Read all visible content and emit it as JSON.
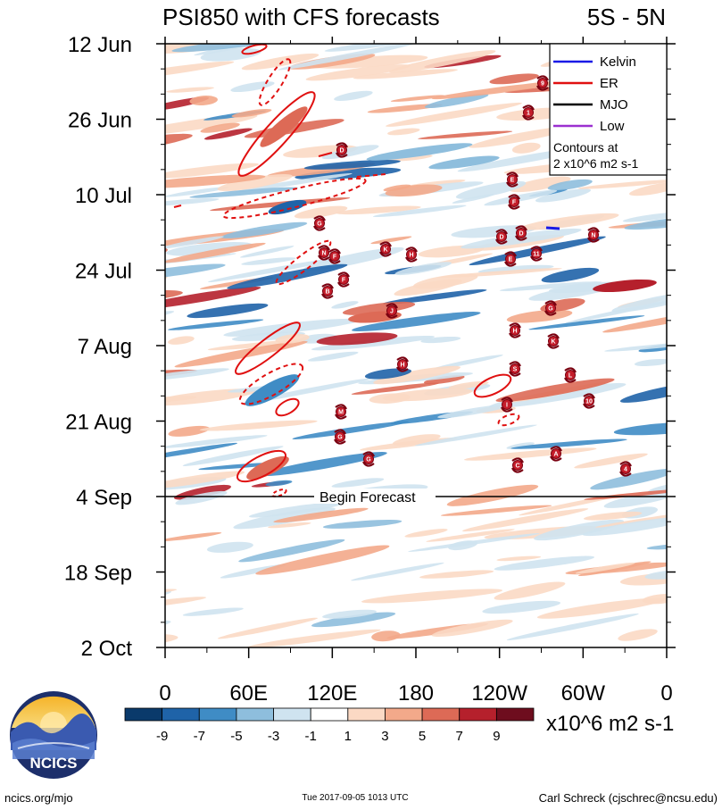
{
  "chart_data": {
    "type": "heatmap",
    "title": "PSI850 with CFS forecasts",
    "region": "5S - 5N",
    "y_ticks": [
      "12 Jun",
      "26 Jun",
      "10 Jul",
      "24 Jul",
      "7 Aug",
      "21 Aug",
      "4 Sep",
      "18 Sep",
      "2 Oct"
    ],
    "x_ticks": [
      "0",
      "60E",
      "120E",
      "180",
      "120W",
      "60W",
      "0"
    ],
    "forecast_label": "Begin Forecast",
    "legend": {
      "items": [
        {
          "name": "Kelvin",
          "color": "#1a1ae6"
        },
        {
          "name": "ER",
          "color": "#e01010"
        },
        {
          "name": "MJO",
          "color": "#000000"
        },
        {
          "name": "Low",
          "color": "#9b30d0"
        }
      ],
      "note_line1": "Contours at",
      "note_line2": "2 x10^6 m2 s-1"
    },
    "colorbar": {
      "labels": [
        "-9",
        "-7",
        "-5",
        "-3",
        "-1",
        "1",
        "3",
        "5",
        "7",
        "9"
      ],
      "colors": [
        "#0a3a6b",
        "#1f63a8",
        "#3f8cc5",
        "#8ebedd",
        "#cfe3f0",
        "#ffffff",
        "#fbd9c4",
        "#f3a98a",
        "#dd6a56",
        "#b5202c",
        "#6e0d1e"
      ],
      "units": "x10^6 m2 s-1"
    },
    "storm_markers": [
      "9",
      "1",
      "D",
      "E",
      "F",
      "G",
      "D",
      "D",
      "N",
      "K",
      "H",
      "N",
      "F",
      "E",
      "11",
      "F",
      "B",
      "J",
      "G",
      "H",
      "K",
      "H",
      "S",
      "L",
      "10",
      "I",
      "M",
      "G",
      "G",
      "C",
      "A",
      "4"
    ]
  },
  "footer": {
    "logo_text": "NCICS",
    "left": "ncics.org/mjo",
    "center": "Tue 2017-09-05 1013 UTC",
    "right": "Carl Schreck (cjschrec@ncsu.edu)"
  }
}
